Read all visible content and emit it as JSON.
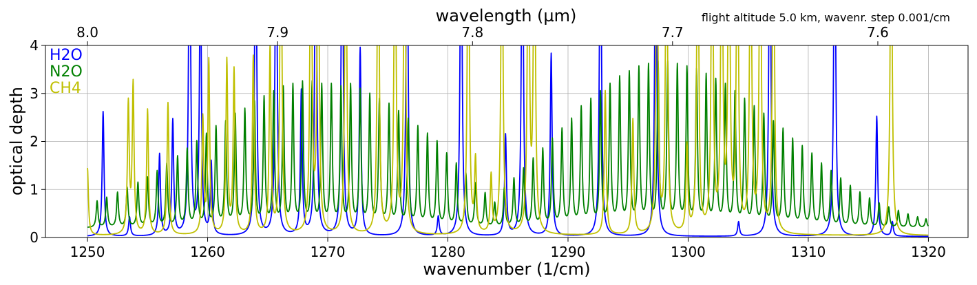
{
  "chart_data": {
    "type": "line",
    "title": "",
    "annotation": "flight altitude 5.0 km, wavenr. step 0.001/cm",
    "xlabel": "wavenumber (1/cm)",
    "ylabel": "optical depth",
    "x2label": "wavelength (µm)",
    "xlim": [
      1246.5,
      1323.3
    ],
    "ylim": [
      0,
      4
    ],
    "grid": true,
    "legend_placement": "top-left",
    "xticks": [
      {
        "value": 1250,
        "label": "1250"
      },
      {
        "value": 1260,
        "label": "1260"
      },
      {
        "value": 1270,
        "label": "1270"
      },
      {
        "value": 1280,
        "label": "1280"
      },
      {
        "value": 1290,
        "label": "1290"
      },
      {
        "value": 1300,
        "label": "1300"
      },
      {
        "value": 1310,
        "label": "1310"
      },
      {
        "value": 1320,
        "label": "1320"
      }
    ],
    "yticks": [
      {
        "value": 0,
        "label": "0"
      },
      {
        "value": 1,
        "label": "1"
      },
      {
        "value": 2,
        "label": "2"
      },
      {
        "value": 3,
        "label": "3"
      },
      {
        "value": 4,
        "label": "4"
      }
    ],
    "x2ticks": [
      {
        "value": 8.0,
        "label": "8.0"
      },
      {
        "value": 7.9,
        "label": "7.9"
      },
      {
        "value": 7.8,
        "label": "7.8"
      },
      {
        "value": 7.7,
        "label": "7.7"
      },
      {
        "value": 7.6,
        "label": "7.6"
      }
    ],
    "series": [
      {
        "name": "H2O",
        "color": "#0000ff",
        "line_positions": [
          1251.3,
          1253.5,
          1256.0,
          1257.1,
          1258.5,
          1259.4,
          1260.3,
          1264.0,
          1265.7,
          1267.8,
          1269.0,
          1271.2,
          1272.7,
          1276.6,
          1279.2,
          1281.1,
          1284.8,
          1286.2,
          1288.6,
          1292.7,
          1297.3,
          1304.2,
          1306.8,
          1312.2,
          1315.7,
          1317.0
        ],
        "line_strengths": [
          2.6,
          0.4,
          1.7,
          2.4,
          8,
          6,
          1.5,
          8,
          8,
          3,
          8,
          8,
          3.9,
          8,
          0.4,
          8,
          2.1,
          8,
          3.8,
          8,
          8,
          0.3,
          8,
          8,
          2.5,
          0.3
        ],
        "baseline": 0.02
      },
      {
        "name": "N2O",
        "color": "#008000",
        "line_positions": [
          1250.8,
          1251.6,
          1252.5,
          1253.3,
          1254.2,
          1255.0,
          1255.8,
          1256.6,
          1257.5,
          1258.3,
          1259.1,
          1259.9,
          1260.7,
          1261.5,
          1262.3,
          1263.1,
          1263.9,
          1264.7,
          1265.5,
          1266.3,
          1267.1,
          1267.9,
          1268.7,
          1269.5,
          1270.3,
          1271.1,
          1271.9,
          1272.7,
          1273.5,
          1274.3,
          1275.1,
          1275.9,
          1276.7,
          1277.5,
          1278.3,
          1279.1,
          1279.9,
          1280.7,
          1281.5,
          1282.3,
          1283.1,
          1283.9,
          1284.7,
          1285.5,
          1286.3,
          1287.1,
          1287.9,
          1288.7,
          1289.5,
          1290.3,
          1291.1,
          1291.9,
          1292.7,
          1293.5,
          1294.3,
          1295.1,
          1295.9,
          1296.7,
          1297.5,
          1298.3,
          1299.1,
          1299.9,
          1300.7,
          1301.5,
          1302.3,
          1303.1,
          1303.9,
          1304.7,
          1305.5,
          1306.3,
          1307.1,
          1307.9,
          1308.7,
          1309.5,
          1310.3,
          1311.1,
          1311.9,
          1312.7,
          1313.5,
          1314.3,
          1315.1,
          1315.9,
          1316.7,
          1317.5,
          1318.3,
          1319.1,
          1319.8
        ],
        "line_strengths": [
          0.55,
          0.62,
          0.72,
          0.82,
          0.92,
          1.02,
          1.15,
          1.3,
          1.45,
          1.6,
          1.75,
          1.9,
          2.05,
          2.15,
          2.3,
          2.4,
          2.55,
          2.65,
          2.75,
          2.85,
          2.9,
          2.95,
          2.95,
          2.9,
          2.9,
          2.85,
          2.9,
          2.8,
          2.7,
          2.6,
          2.5,
          2.35,
          2.2,
          2.05,
          1.9,
          1.75,
          1.5,
          1.3,
          1.1,
          0.9,
          0.7,
          0.5,
          0.8,
          1.0,
          1.2,
          1.4,
          1.6,
          1.8,
          2.0,
          2.2,
          2.45,
          2.6,
          2.75,
          2.9,
          3.05,
          3.15,
          3.25,
          3.3,
          3.35,
          3.35,
          3.3,
          3.25,
          3.2,
          3.1,
          3.0,
          2.9,
          2.75,
          2.6,
          2.45,
          2.3,
          2.15,
          2.0,
          1.8,
          1.65,
          1.5,
          1.3,
          1.15,
          1.0,
          0.85,
          0.72,
          0.6,
          0.5,
          0.42,
          0.35,
          0.28,
          0.22,
          0.18
        ],
        "baseline": 0.2
      },
      {
        "name": "CH4",
        "color": "#bfbf00",
        "line_positions": [
          1250.0,
          1253.4,
          1253.8,
          1255.0,
          1256.7,
          1259.6,
          1260.1,
          1261.6,
          1262.2,
          1263.8,
          1265.2,
          1266.1,
          1268.6,
          1269.2,
          1271.5,
          1274.2,
          1275.6,
          1276.4,
          1281.7,
          1282.3,
          1283.6,
          1284.5,
          1286.7,
          1287.2,
          1293.1,
          1295.4,
          1297.4,
          1298.2,
          1299.9,
          1300.8,
          1302.0,
          1302.8,
          1303.4,
          1304.1,
          1305.2,
          1306.0,
          1307.1,
          1316.9
        ],
        "line_strengths": [
          1.4,
          2.7,
          3.1,
          2.6,
          2.75,
          2.4,
          3.6,
          3.6,
          3.4,
          3.7,
          3.9,
          8,
          8,
          8,
          8,
          8,
          8,
          8,
          8,
          1.5,
          1.2,
          8,
          8,
          8,
          3.0,
          2.4,
          8,
          8,
          1.8,
          8,
          8,
          8,
          8,
          8,
          8,
          8,
          8,
          8
        ],
        "baseline": 0.04
      }
    ]
  }
}
